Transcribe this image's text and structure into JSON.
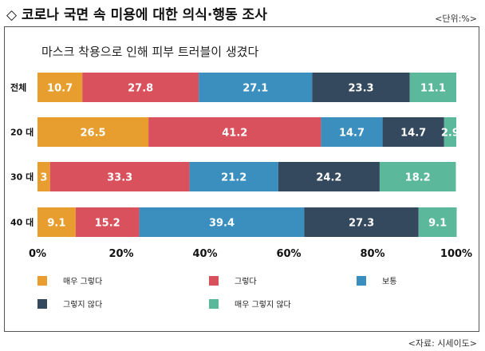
{
  "header": {
    "title": "◇ 코로나 국면 속 미용에 대한 의식·행동 조사",
    "unit": "<단위:%>",
    "source": "<자료: 시세이도>"
  },
  "chart_data": {
    "type": "bar",
    "orientation": "horizontal",
    "stacked": true,
    "title": "마스크 착용으로 인해 피부 트러블이 생겼다",
    "categories": [
      "전체",
      "20 대",
      "30 대",
      "40 대"
    ],
    "series": [
      {
        "name": "매우 그렇다",
        "color": "#E89E2E",
        "values": [
          10.7,
          26.5,
          3,
          9.1
        ]
      },
      {
        "name": "그렇다",
        "color": "#D9515C",
        "values": [
          27.8,
          41.2,
          33.3,
          15.2
        ]
      },
      {
        "name": "보통",
        "color": "#3A8FBF",
        "values": [
          27.1,
          14.7,
          21.2,
          39.4
        ]
      },
      {
        "name": "그렇지 않다",
        "color": "#34495E",
        "values": [
          23.3,
          14.7,
          24.2,
          27.3
        ]
      },
      {
        "name": "매우 그렇지 않다",
        "color": "#5CB89B",
        "values": [
          11.1,
          2.9,
          18.2,
          9.1
        ]
      }
    ],
    "value_labels": [
      [
        "10.7",
        "27.8",
        "27.1",
        "23.3",
        "11.1"
      ],
      [
        "26.5",
        "41.2",
        "14.7",
        "14.7",
        "2.9"
      ],
      [
        "3",
        "33.3",
        "21.2",
        "24.2",
        "18.2"
      ],
      [
        "9.1",
        "15.2",
        "39.4",
        "27.3",
        "9.1"
      ]
    ],
    "xlim": [
      0,
      100
    ],
    "xticks": [
      "0%",
      "20%",
      "40%",
      "60%",
      "80%",
      "100%"
    ],
    "legend": "bottom",
    "grid": false
  }
}
